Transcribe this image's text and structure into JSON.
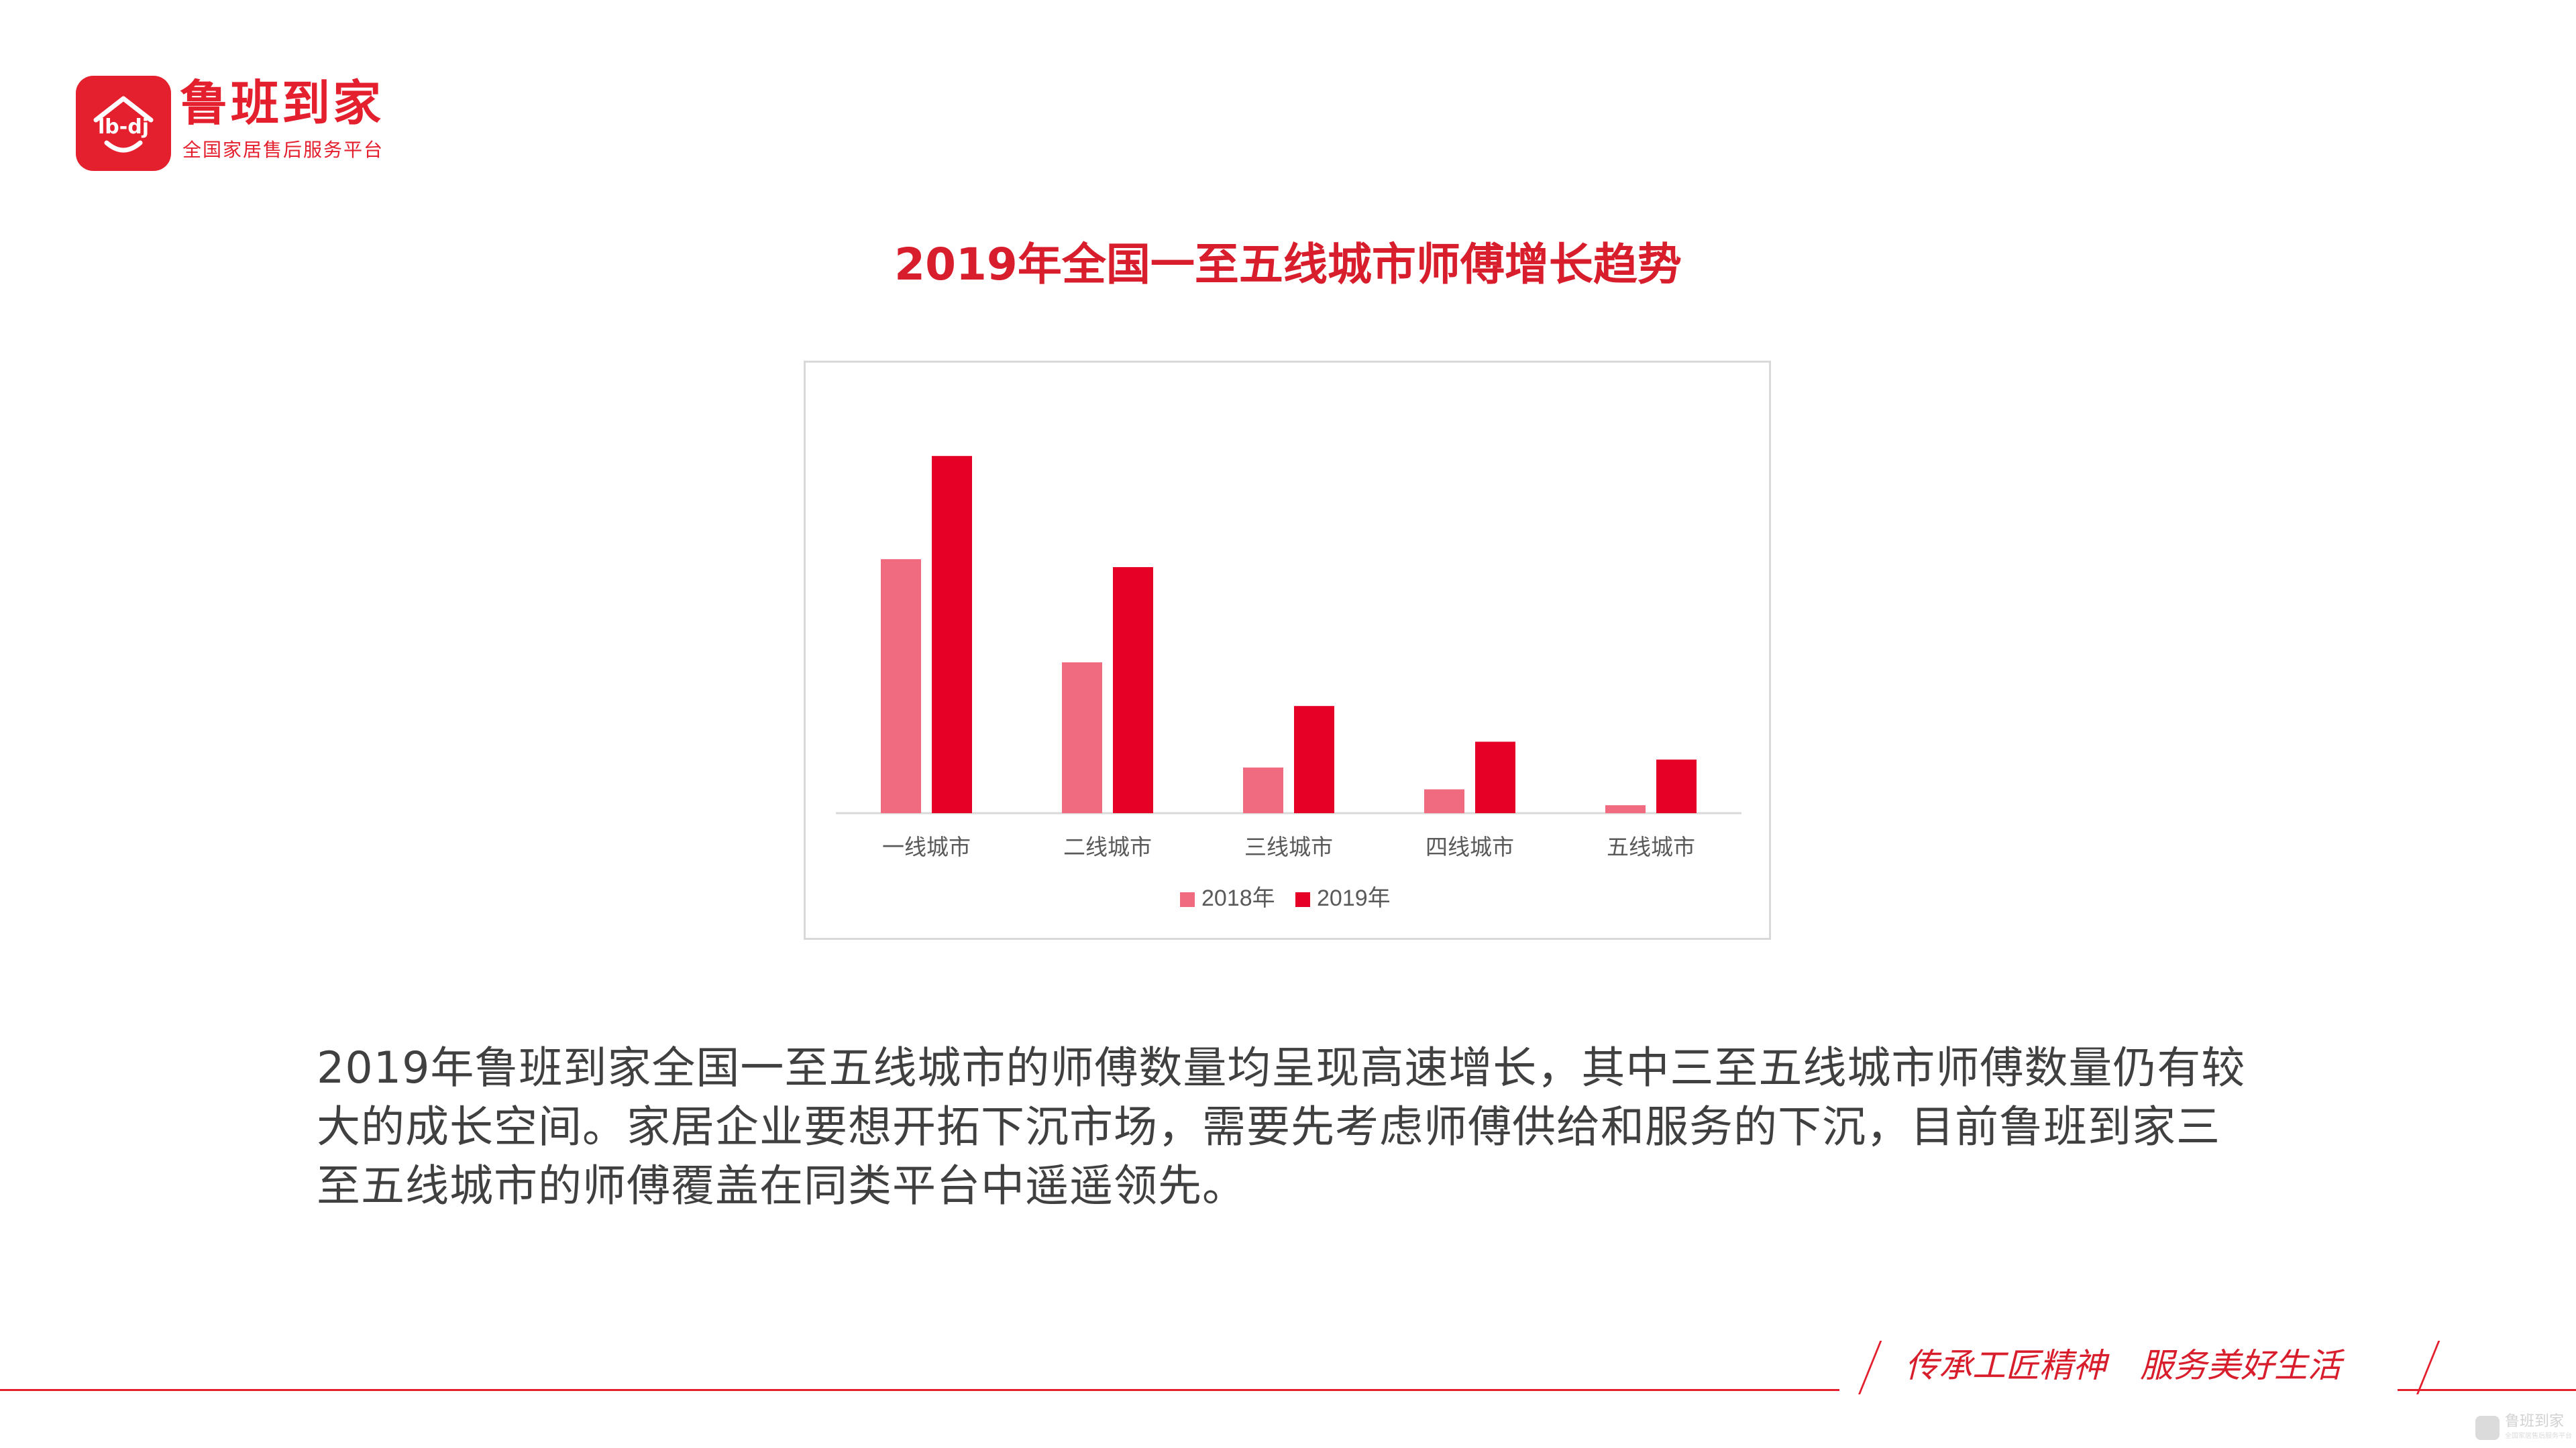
{
  "logo": {
    "badge_text": "lb-dj",
    "name": "鲁班到家",
    "tagline": "全国家居售后服务平台"
  },
  "title": "2019年全国一至五线城市师傅增长趋势",
  "chart_data": {
    "type": "bar",
    "title": "",
    "categories": [
      "一线城市",
      "二线城市",
      "三线城市",
      "四线城市",
      "五线城市"
    ],
    "series": [
      {
        "name": "2018年",
        "color": "#f06a80",
        "values": [
          64,
          38,
          11.5,
          6,
          2
        ]
      },
      {
        "name": "2019年",
        "color": "#e60026",
        "values": [
          90,
          62,
          27,
          18,
          13.5
        ]
      }
    ],
    "ylim": [
      0,
      100
    ],
    "xlabel": "",
    "ylabel": "",
    "grid": false,
    "legend": "bottom"
  },
  "description": "2019年鲁班到家全国一至五线城市的师傅数量均呈现高速增长，其中三至五线城市师傅数量仍有较大的成长空间。家居企业要想开拓下沉市场，需要先考虑师傅供给和服务的下沉，目前鲁班到家三至五线城市的师傅覆盖在同类平台中遥遥领先。",
  "footer": {
    "slogan_1": "传承工匠精神",
    "slogan_2": "服务美好生活"
  },
  "watermark": {
    "text": "鲁班到家",
    "sub": "全国家居售后服务平台"
  },
  "colors": {
    "brand": "#e5202e",
    "title": "#d81e2c",
    "text": "#404040"
  }
}
